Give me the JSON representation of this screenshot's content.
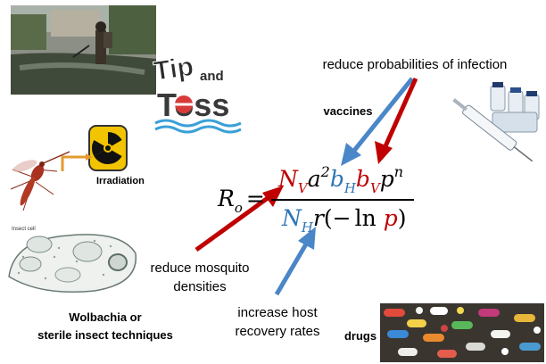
{
  "labels": {
    "reduce_prob": "reduce probabilities of infection",
    "vaccines": "vaccines",
    "irradiation": "Irradiation",
    "reduce_mosq_1": "reduce mosquito",
    "reduce_mosq_2": "densities",
    "host_1": "increase host",
    "host_2": "recovery rates",
    "wolbachia_1": "Wolbachia or",
    "wolbachia_2": "sterile insect techniques",
    "drugs": "drugs",
    "insect_cell": "Insect cell",
    "tip": "Tip",
    "and": "and",
    "toss": "Toss"
  },
  "equation": {
    "lhs": "R",
    "lhs_sub": "o",
    "eq": "=",
    "num": {
      "N": "N",
      "N_sub": "V",
      "a": "a",
      "a_exp": "2",
      "b1": "b",
      "b1_sub": "H",
      "b2": "b",
      "b2_sub": "V",
      "p": "p",
      "p_exp": "n"
    },
    "den": {
      "N": "N",
      "N_sub": "H",
      "r": "r",
      "open": "(−",
      "ln": "ln",
      "p": "p",
      "close": ")"
    }
  },
  "colors": {
    "red": "#c00000",
    "blue": "#2e75b6",
    "arrow_red": "#c00000",
    "arrow_blue": "#4a86c8",
    "radiation": "#f2c400"
  }
}
